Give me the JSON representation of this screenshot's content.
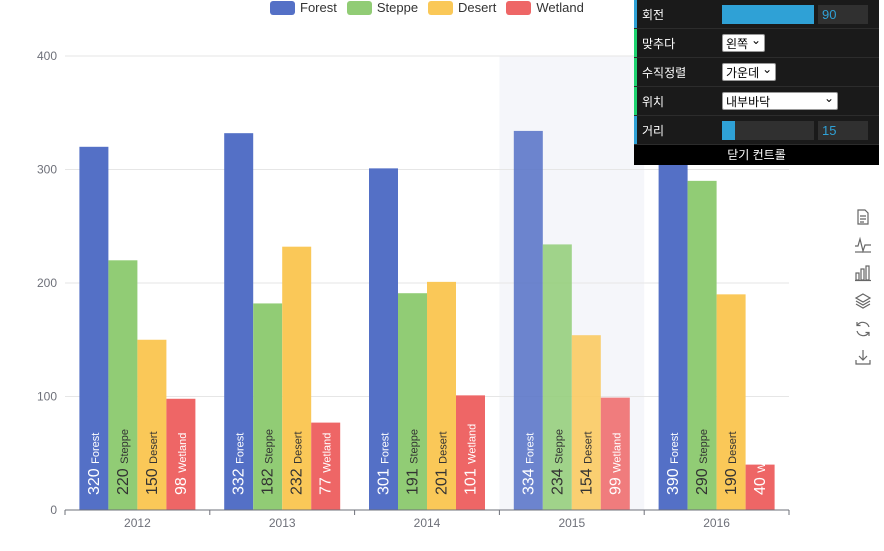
{
  "chart_data": {
    "type": "bar",
    "categories": [
      "2012",
      "2013",
      "2014",
      "2015",
      "2016"
    ],
    "series": [
      {
        "name": "Forest",
        "color": "#5470c6",
        "values": [
          320,
          332,
          301,
          334,
          390
        ]
      },
      {
        "name": "Steppe",
        "color": "#91cc75",
        "values": [
          220,
          182,
          191,
          234,
          290
        ]
      },
      {
        "name": "Desert",
        "color": "#fac858",
        "values": [
          150,
          232,
          201,
          154,
          190
        ]
      },
      {
        "name": "Wetland",
        "color": "#ee6666",
        "values": [
          98,
          77,
          101,
          99,
          40
        ]
      }
    ],
    "ylim": [
      0,
      400
    ],
    "yticks": [
      0,
      100,
      200,
      300,
      400
    ],
    "grid": true,
    "legend": "top-center",
    "highlighted_category": "2015",
    "label_rotation": 90,
    "label_position": "insideBottom"
  },
  "toolbox": {
    "icons": [
      "data-view-icon",
      "line-chart-icon",
      "bar-chart-icon",
      "stack-icon",
      "restore-icon",
      "download-icon"
    ]
  },
  "controls": {
    "rotate_label": "회전",
    "rotate_value": "90",
    "align_label": "맞추다",
    "align_value": "왼쪽",
    "valign_label": "수직정렬",
    "valign_value": "가운데",
    "position_label": "위치",
    "position_value": "내부바닥",
    "distance_label": "거리",
    "distance_value": "15",
    "close_label": "닫기 컨트롤"
  }
}
